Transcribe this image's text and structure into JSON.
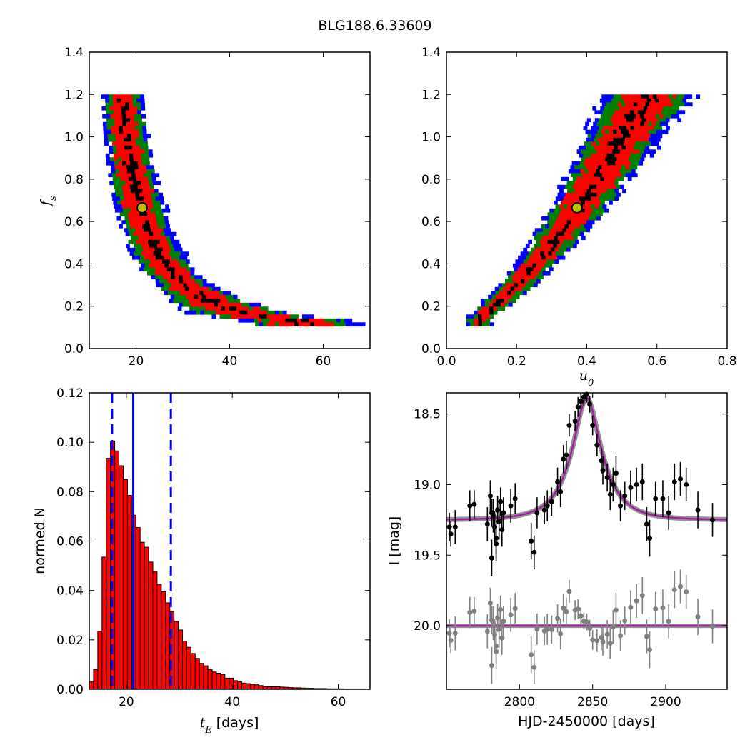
{
  "title": "BLG188.6.33609",
  "colors": {
    "blue": "#0000ff",
    "green": "#008000",
    "red": "#ff0000",
    "black": "#000000",
    "marker_face": "#bfbf00",
    "model_purple": "#a020a0",
    "model_gray": "#808080",
    "residual_gray": "#808080"
  },
  "chart_data": [
    {
      "id": "tE_fs",
      "type": "heatmap",
      "xlabel": "",
      "ylabel": "f_s",
      "xlim": [
        10,
        70
      ],
      "ylim": [
        0.0,
        1.4
      ],
      "xticks": [
        20,
        40,
        60
      ],
      "yticks": [
        0.0,
        0.2,
        0.4,
        0.6,
        0.8,
        1.0,
        1.2,
        1.4
      ],
      "levels": [
        "black",
        "red",
        "green",
        "blue"
      ],
      "ridge": [
        [
          17,
          1.2
        ],
        [
          18,
          1.0
        ],
        [
          19,
          0.85
        ],
        [
          20.5,
          0.7
        ],
        [
          22,
          0.58
        ],
        [
          24,
          0.47
        ],
        [
          27,
          0.37
        ],
        [
          31,
          0.29
        ],
        [
          36,
          0.22
        ],
        [
          42,
          0.17
        ],
        [
          50,
          0.14
        ],
        [
          56,
          0.13
        ]
      ],
      "best_fit": [
        21.3,
        0.665
      ]
    },
    {
      "id": "u0_fs",
      "type": "heatmap",
      "xlabel": "u_0",
      "ylabel": "",
      "xlim": [
        0.0,
        0.8
      ],
      "ylim": [
        0.0,
        1.4
      ],
      "xticks": [
        0.0,
        0.2,
        0.4,
        0.6,
        0.8
      ],
      "yticks": [
        0.0,
        0.2,
        0.4,
        0.6,
        0.8,
        1.0,
        1.2,
        1.4
      ],
      "levels": [
        "black",
        "red",
        "green",
        "blue"
      ],
      "ridge": [
        [
          0.09,
          0.13
        ],
        [
          0.15,
          0.22
        ],
        [
          0.2,
          0.3
        ],
        [
          0.25,
          0.39
        ],
        [
          0.3,
          0.49
        ],
        [
          0.35,
          0.6
        ],
        [
          0.4,
          0.72
        ],
        [
          0.45,
          0.85
        ],
        [
          0.5,
          0.99
        ],
        [
          0.55,
          1.12
        ],
        [
          0.58,
          1.2
        ]
      ],
      "best_fit": [
        0.372,
        0.665
      ]
    },
    {
      "id": "tE_hist",
      "type": "bar",
      "xlabel": "t_E [days]",
      "ylabel": "normed N",
      "xlim": [
        13,
        66
      ],
      "ylim": [
        0.0,
        0.12
      ],
      "xticks": [
        20,
        40,
        60
      ],
      "yticks": [
        0.0,
        0.02,
        0.04,
        0.06,
        0.08,
        0.1,
        0.12
      ],
      "bin_start": 13.0,
      "bin_width": 0.8,
      "values": [
        0.003,
        0.008,
        0.0235,
        0.0535,
        0.0935,
        0.1005,
        0.0965,
        0.0905,
        0.085,
        0.0785,
        0.0705,
        0.0655,
        0.0595,
        0.0575,
        0.0515,
        0.0475,
        0.0425,
        0.0395,
        0.035,
        0.0315,
        0.0275,
        0.024,
        0.0195,
        0.017,
        0.0145,
        0.0125,
        0.0105,
        0.0095,
        0.008,
        0.007,
        0.0065,
        0.006,
        0.0045,
        0.0045,
        0.0035,
        0.003,
        0.0025,
        0.0023,
        0.002,
        0.0018,
        0.0015,
        0.0012,
        0.001,
        0.001,
        0.001,
        0.0009,
        0.0008,
        0.0007,
        0.0006,
        0.0006,
        0.0005,
        0.0004,
        0.0004,
        0.0003,
        0.0003,
        0.0003,
        0.0002,
        0.0002,
        0.0002,
        0.0002,
        0.0001,
        0.0001,
        0.0001,
        0.0001,
        0.0001,
        0.0001
      ],
      "median": 21.3,
      "lower": 17.3,
      "upper": 28.4
    },
    {
      "id": "lightcurve",
      "type": "scatter",
      "xlabel": "HJD-2450000 [days]",
      "ylabel": "I [mag]",
      "xlim": [
        2750,
        2942
      ],
      "ylim": [
        19.9,
        18.35
      ],
      "display_ylim": [
        18.35,
        20.45
      ],
      "xticks": [
        2800,
        2850,
        2900
      ],
      "yticks": [
        18.5,
        19.0,
        19.5,
        20.0
      ],
      "model": {
        "t0": 2846.0,
        "tE": 21.3,
        "u0": 0.372,
        "fs": 0.665,
        "I_base": 19.25
      },
      "residual_offset": 20.0,
      "data": [
        [
          2752,
          19.3,
          0.1
        ],
        [
          2753,
          19.35,
          0.09
        ],
        [
          2756,
          19.3,
          0.12
        ],
        [
          2766,
          19.15,
          0.11
        ],
        [
          2769,
          19.14,
          0.1
        ],
        [
          2778,
          19.28,
          0.12
        ],
        [
          2780,
          19.08,
          0.11
        ],
        [
          2781,
          19.2,
          0.1
        ],
        [
          2782,
          19.22,
          0.12
        ],
        [
          2783,
          19.3,
          0.11
        ],
        [
          2784,
          19.38,
          0.12
        ],
        [
          2785,
          19.18,
          0.1
        ],
        [
          2786,
          19.26,
          0.13
        ],
        [
          2787,
          19.12,
          0.1
        ],
        [
          2788,
          19.32,
          0.12
        ],
        [
          2781,
          19.52,
          0.13
        ],
        [
          2784,
          19.42,
          0.12
        ],
        [
          2789,
          19.2,
          0.11
        ],
        [
          2794,
          19.15,
          0.12
        ],
        [
          2797,
          19.1,
          0.11
        ],
        [
          2808,
          19.4,
          0.13
        ],
        [
          2810,
          19.48,
          0.12
        ],
        [
          2812,
          19.2,
          0.11
        ],
        [
          2817,
          19.18,
          0.1
        ],
        [
          2819,
          19.15,
          0.11
        ],
        [
          2822,
          19.12,
          0.1
        ],
        [
          2826,
          18.98,
          0.1
        ],
        [
          2828,
          19.05,
          0.11
        ],
        [
          2830,
          18.82,
          0.1
        ],
        [
          2832,
          18.79,
          0.1
        ],
        [
          2834,
          18.58,
          0.08
        ],
        [
          2838,
          18.55,
          0.07
        ],
        [
          2840,
          18.45,
          0.07
        ],
        [
          2842,
          18.41,
          0.06
        ],
        [
          2844,
          18.38,
          0.06
        ],
        [
          2846,
          18.36,
          0.06
        ],
        [
          2848,
          18.43,
          0.06
        ],
        [
          2850,
          18.58,
          0.07
        ],
        [
          2853,
          18.72,
          0.08
        ],
        [
          2856,
          18.83,
          0.09
        ],
        [
          2857,
          18.9,
          0.1
        ],
        [
          2860,
          18.95,
          0.1
        ],
        [
          2862,
          19.07,
          0.11
        ],
        [
          2864,
          19.0,
          0.12
        ],
        [
          2866,
          18.92,
          0.12
        ],
        [
          2869,
          19.15,
          0.11
        ],
        [
          2872,
          19.08,
          0.1
        ],
        [
          2876,
          19.02,
          0.12
        ],
        [
          2880,
          19.0,
          0.12
        ],
        [
          2884,
          18.98,
          0.13
        ],
        [
          2887,
          19.28,
          0.12
        ],
        [
          2889,
          19.38,
          0.13
        ],
        [
          2893,
          19.1,
          0.12
        ],
        [
          2898,
          19.1,
          0.13
        ],
        [
          2902,
          19.2,
          0.12
        ],
        [
          2906,
          18.98,
          0.13
        ],
        [
          2910,
          18.96,
          0.12
        ],
        [
          2914,
          19.0,
          0.12
        ],
        [
          2922,
          19.18,
          0.13
        ],
        [
          2932,
          19.25,
          0.12
        ]
      ]
    }
  ]
}
